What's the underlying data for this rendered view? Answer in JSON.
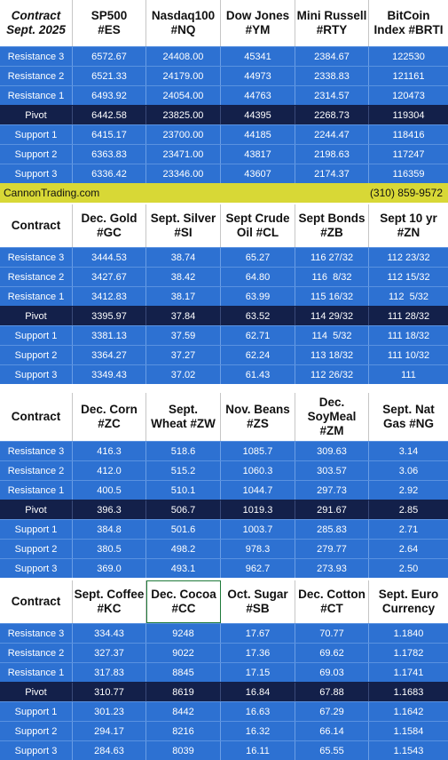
{
  "sections": [
    {
      "headers": [
        [
          "Contract",
          "Sept. 2025"
        ],
        [
          "SP500",
          "#ES"
        ],
        [
          "Nasdaq100",
          "#NQ"
        ],
        [
          "Dow Jones",
          "#YM"
        ],
        [
          "Mini Russell",
          "#RTY"
        ],
        [
          "BitCoin",
          "Index #BRTI"
        ]
      ],
      "rows": [
        [
          "Resistance 3",
          "6572.67",
          "24408.00",
          "45341",
          "2384.67",
          "122530"
        ],
        [
          "Resistance 2",
          "6521.33",
          "24179.00",
          "44973",
          "2338.83",
          "121161"
        ],
        [
          "Resistance 1",
          "6493.92",
          "24054.00",
          "44763",
          "2314.57",
          "120473"
        ],
        [
          "Pivot",
          "6442.58",
          "23825.00",
          "44395",
          "2268.73",
          "119304"
        ],
        [
          "Support 1",
          "6415.17",
          "23700.00",
          "44185",
          "2244.47",
          "118416"
        ],
        [
          "Support 2",
          "6363.83",
          "23471.00",
          "43817",
          "2198.63",
          "117247"
        ],
        [
          "Support 3",
          "6336.42",
          "23346.00",
          "43607",
          "2174.37",
          "116359"
        ]
      ]
    },
    {
      "headers": [
        [
          "Contract"
        ],
        [
          "Dec. Gold",
          "#GC"
        ],
        [
          "Sept. Silver",
          "#SI"
        ],
        [
          "Sept Crude",
          "Oil #CL"
        ],
        [
          "Sept Bonds",
          "#ZB"
        ],
        [
          "Sept 10 yr",
          "#ZN"
        ]
      ],
      "rows": [
        [
          "Resistance 3",
          "3444.53",
          "38.74",
          "65.27",
          "116 27/32",
          "112 23/32"
        ],
        [
          "Resistance 2",
          "3427.67",
          "38.42",
          "64.80",
          "116  8/32",
          "112 15/32"
        ],
        [
          "Resistance 1",
          "3412.83",
          "38.17",
          "63.99",
          "115 16/32",
          "112  5/32"
        ],
        [
          "Pivot",
          "3395.97",
          "37.84",
          "63.52",
          "114 29/32",
          "111 28/32"
        ],
        [
          "Support 1",
          "3381.13",
          "37.59",
          "62.71",
          "114  5/32",
          "111 18/32"
        ],
        [
          "Support 2",
          "3364.27",
          "37.27",
          "62.24",
          "113 18/32",
          "111 10/32"
        ],
        [
          "Support 3",
          "3349.43",
          "37.02",
          "61.43",
          "112 26/32",
          "111"
        ]
      ]
    },
    {
      "headers": [
        [
          "Contract"
        ],
        [
          "Dec. Corn",
          "#ZC"
        ],
        [
          "Sept.",
          "Wheat #ZW"
        ],
        [
          "Nov. Beans",
          "#ZS"
        ],
        [
          "Dec.",
          "SoyMeal",
          "#ZM"
        ],
        [
          "Sept. Nat",
          "Gas #NG"
        ]
      ],
      "rows": [
        [
          "Resistance 3",
          "416.3",
          "518.6",
          "1085.7",
          "309.63",
          "3.14"
        ],
        [
          "Resistance 2",
          "412.0",
          "515.2",
          "1060.3",
          "303.57",
          "3.06"
        ],
        [
          "Resistance 1",
          "400.5",
          "510.1",
          "1044.7",
          "297.73",
          "2.92"
        ],
        [
          "Pivot",
          "396.3",
          "506.7",
          "1019.3",
          "291.67",
          "2.85"
        ],
        [
          "Support 1",
          "384.8",
          "501.6",
          "1003.7",
          "285.83",
          "2.71"
        ],
        [
          "Support 2",
          "380.5",
          "498.2",
          "978.3",
          "279.77",
          "2.64"
        ],
        [
          "Support 3",
          "369.0",
          "493.1",
          "962.7",
          "273.93",
          "2.50"
        ]
      ]
    },
    {
      "headers": [
        [
          "Contract"
        ],
        [
          "Sept. Coffee",
          "#KC"
        ],
        [
          "Dec. Cocoa",
          "#CC"
        ],
        [
          "Oct. Sugar",
          "#SB"
        ],
        [
          "Dec. Cotton",
          "#CT"
        ],
        [
          "Sept. Euro",
          "Currency"
        ]
      ],
      "rows": [
        [
          "Resistance 3",
          "334.43",
          "9248",
          "17.67",
          "70.77",
          "1.1840"
        ],
        [
          "Resistance 2",
          "327.37",
          "9022",
          "17.36",
          "69.62",
          "1.1782"
        ],
        [
          "Resistance 1",
          "317.83",
          "8845",
          "17.15",
          "69.03",
          "1.1741"
        ],
        [
          "Pivot",
          "310.77",
          "8619",
          "16.84",
          "67.88",
          "1.1683"
        ],
        [
          "Support 1",
          "301.23",
          "8442",
          "16.63",
          "67.29",
          "1.1642"
        ],
        [
          "Support 2",
          "294.17",
          "8216",
          "16.32",
          "66.14",
          "1.1584"
        ],
        [
          "Support 3",
          "284.63",
          "8039",
          "16.11",
          "65.55",
          "1.1543"
        ]
      ]
    }
  ],
  "banner": {
    "site": "CannonTrading.com",
    "phone": "(310) 859-9572"
  },
  "colors": {
    "row_blue": "#2d71d2",
    "pivot_navy": "#13204a",
    "banner_yellow": "#d8d836"
  }
}
